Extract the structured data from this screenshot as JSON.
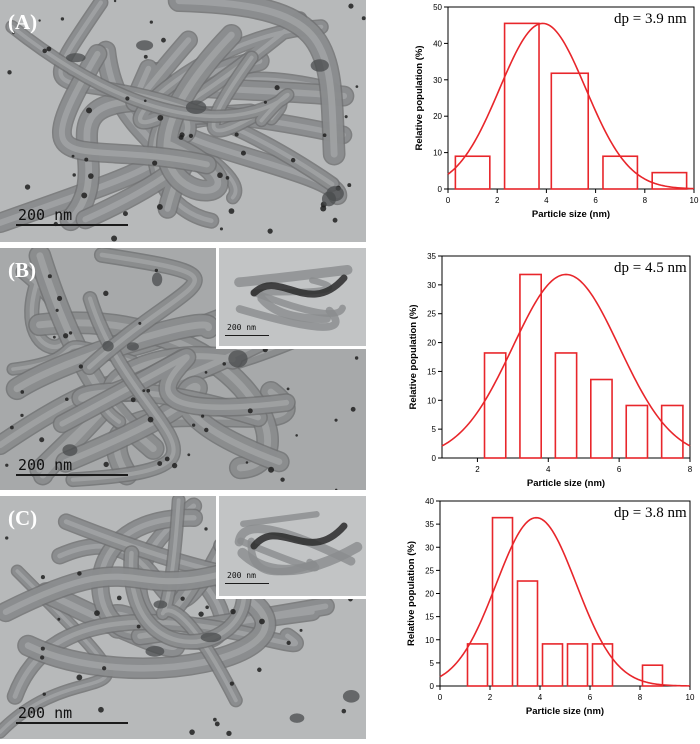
{
  "panels": [
    {
      "label": "(A)",
      "scale_text": "200 nm",
      "inset_scale_text": null
    },
    {
      "label": "(B)",
      "scale_text": "200 nm",
      "inset_scale_text": "200 nm"
    },
    {
      "label": "(C)",
      "scale_text": "200 nm",
      "inset_scale_text": "200 nm"
    }
  ],
  "chart_data": [
    {
      "type": "bar",
      "annotation": "dp = 3.9 nm",
      "xlabel": "Particle size (nm)",
      "ylabel": "Relative population (%)",
      "xlim": [
        0,
        10
      ],
      "ylim": [
        0,
        50
      ],
      "xticks": [
        0,
        2,
        4,
        6,
        8,
        10
      ],
      "yticks": [
        0,
        10,
        20,
        30,
        40,
        50
      ],
      "bins": [
        {
          "start": 0.3,
          "end": 1.7,
          "value": 9
        },
        {
          "start": 2.3,
          "end": 3.7,
          "value": 45.5
        },
        {
          "start": 4.2,
          "end": 5.7,
          "value": 31.8
        },
        {
          "start": 6.3,
          "end": 7.7,
          "value": 9
        },
        {
          "start": 8.3,
          "end": 9.7,
          "value": 4.5
        }
      ],
      "fit": {
        "type": "gaussian",
        "center": 3.85,
        "sigma": 1.75,
        "peak": 45.5
      },
      "bar_color": "#e8262b",
      "fit_color": "#e8262b"
    },
    {
      "type": "bar",
      "annotation": "dp = 4.5 nm",
      "xlabel": "Particle size (nm)",
      "ylabel": "Relative population (%)",
      "xlim": [
        1,
        8
      ],
      "ylim": [
        0,
        35
      ],
      "xticks": [
        2,
        4,
        6,
        8
      ],
      "yticks": [
        0,
        5,
        10,
        15,
        20,
        25,
        30,
        35
      ],
      "bins": [
        {
          "start": 2.2,
          "end": 2.8,
          "value": 18.2
        },
        {
          "start": 3.2,
          "end": 3.8,
          "value": 31.8
        },
        {
          "start": 4.2,
          "end": 4.8,
          "value": 18.2
        },
        {
          "start": 5.2,
          "end": 5.8,
          "value": 13.6
        },
        {
          "start": 6.2,
          "end": 6.8,
          "value": 9.1
        },
        {
          "start": 7.2,
          "end": 7.8,
          "value": 9.1
        }
      ],
      "fit": {
        "type": "gaussian",
        "center": 4.5,
        "sigma": 1.5,
        "peak": 31.8
      },
      "bar_color": "#e8262b",
      "fit_color": "#e8262b"
    },
    {
      "type": "bar",
      "annotation": "dp = 3.8 nm",
      "xlabel": "Particle size (nm)",
      "ylabel": "Relative population (%)",
      "xlim": [
        0,
        10
      ],
      "ylim": [
        0,
        40
      ],
      "xticks": [
        0,
        2,
        4,
        6,
        8,
        10
      ],
      "yticks": [
        0,
        5,
        10,
        15,
        20,
        25,
        30,
        35,
        40
      ],
      "bins": [
        {
          "start": 1.1,
          "end": 1.9,
          "value": 9.1
        },
        {
          "start": 2.1,
          "end": 2.9,
          "value": 36.4
        },
        {
          "start": 3.1,
          "end": 3.9,
          "value": 22.7
        },
        {
          "start": 4.1,
          "end": 4.9,
          "value": 9.1
        },
        {
          "start": 5.1,
          "end": 5.9,
          "value": 9.1
        },
        {
          "start": 6.1,
          "end": 6.9,
          "value": 9.1
        },
        {
          "start": 8.1,
          "end": 8.9,
          "value": 4.5
        }
      ],
      "fit": {
        "type": "gaussian",
        "center": 3.85,
        "sigma": 1.6,
        "peak": 36.4
      },
      "bar_color": "#e8262b",
      "fit_color": "#e8262b"
    }
  ]
}
